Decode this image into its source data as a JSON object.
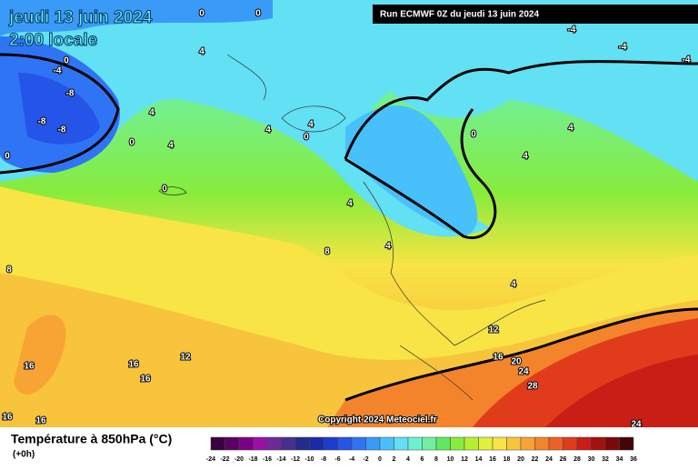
{
  "header": {
    "date": "jeudi 13 juin 2024",
    "time": "2:00 locale",
    "run": "Run ECMWF 0Z du jeudi 13 juin 2024"
  },
  "copyright": "Copyright 2024 Meteociel.fr",
  "legend": {
    "title": "Température à 850hPa (°C)",
    "step": "(+0h)",
    "ticks": [
      -24,
      -22,
      -20,
      -18,
      -16,
      -14,
      -12,
      -10,
      -8,
      -6,
      -4,
      -2,
      0,
      2,
      4,
      6,
      8,
      10,
      12,
      14,
      16,
      18,
      20,
      22,
      24,
      26,
      28,
      30,
      32,
      34,
      36
    ],
    "colors": [
      "#3a0040",
      "#5c0066",
      "#7a0088",
      "#9a10a6",
      "#6e2a96",
      "#46308e",
      "#222c8a",
      "#1a2aa8",
      "#1c3ccc",
      "#2454e8",
      "#2e74f4",
      "#3a9af8",
      "#48c0fa",
      "#62e0f4",
      "#6cf0d0",
      "#70f0a0",
      "#60e860",
      "#86ec3c",
      "#b4f030",
      "#e0f03c",
      "#f8e444",
      "#f8c43c",
      "#f8a434",
      "#f4842c",
      "#ee6024",
      "#e03c1c",
      "#c81e16",
      "#a4100e",
      "#7c0808",
      "#440404"
    ]
  },
  "contour_labels": [
    0,
    0,
    0,
    0,
    0,
    0,
    0,
    0,
    -4,
    -4,
    -4,
    -4,
    -8,
    -8,
    -8,
    4,
    4,
    4,
    4,
    4,
    4,
    4,
    4,
    4,
    4,
    8,
    8,
    12,
    12,
    16,
    16,
    16,
    16,
    16,
    16,
    20,
    24,
    24,
    28
  ]
}
